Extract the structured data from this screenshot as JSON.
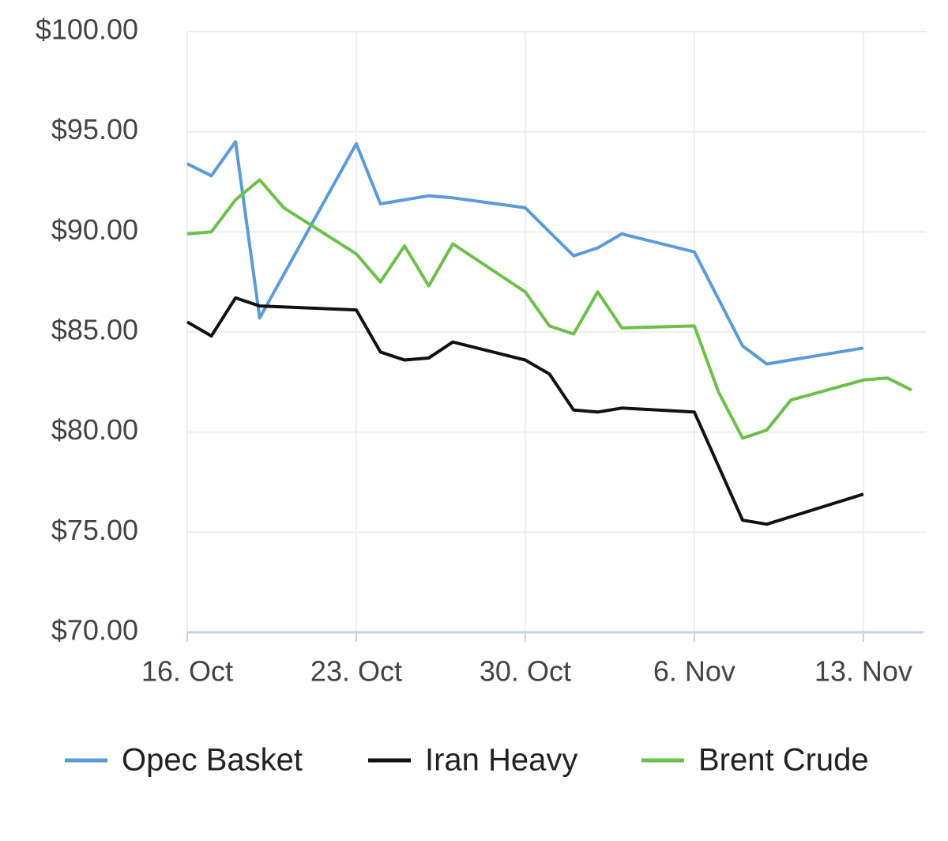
{
  "chart_data": {
    "type": "line",
    "xlim": [
      "16. Oct",
      "15. Nov"
    ],
    "xticks": [
      "16. Oct",
      "23. Oct",
      "30. Oct",
      "6. Nov",
      "13. Nov"
    ],
    "ylim": [
      70,
      100
    ],
    "yticks": [
      {
        "value": 70,
        "label": "$70.00"
      },
      {
        "value": 75,
        "label": "$75.00"
      },
      {
        "value": 80,
        "label": "$80.00"
      },
      {
        "value": 85,
        "label": "$85.00"
      },
      {
        "value": 90,
        "label": "$90.00"
      },
      {
        "value": 95,
        "label": "$95.00"
      },
      {
        "value": 100,
        "label": "$100.00"
      }
    ],
    "grid": true,
    "legend": "bottom",
    "series": [
      {
        "name": "Opec Basket",
        "color": "#5b9bd8",
        "x": [
          "16. Oct",
          "17. Oct",
          "18. Oct",
          "19. Oct",
          "23. Oct",
          "24. Oct",
          "26. Oct",
          "27. Oct",
          "30. Oct",
          "1. Nov",
          "2. Nov",
          "3. Nov",
          "6. Nov",
          "8. Nov",
          "9. Nov",
          "13. Nov"
        ],
        "values": [
          93.4,
          92.8,
          94.5,
          85.7,
          94.4,
          91.4,
          91.8,
          91.7,
          91.2,
          88.8,
          89.2,
          89.9,
          89.0,
          84.3,
          83.4,
          84.2
        ]
      },
      {
        "name": "Iran Heavy",
        "color": "#111111",
        "x": [
          "16. Oct",
          "17. Oct",
          "18. Oct",
          "19. Oct",
          "23. Oct",
          "24. Oct",
          "25. Oct",
          "26. Oct",
          "27. Oct",
          "30. Oct",
          "31. Oct",
          "1. Nov",
          "2. Nov",
          "3. Nov",
          "6. Nov",
          "7. Nov",
          "8. Nov",
          "9. Nov",
          "13. Nov"
        ],
        "values": [
          85.5,
          84.8,
          86.7,
          86.3,
          86.1,
          84.0,
          83.6,
          83.7,
          84.5,
          83.6,
          82.9,
          81.1,
          81.0,
          81.2,
          81.0,
          78.3,
          75.6,
          75.4,
          76.9
        ]
      },
      {
        "name": "Brent Crude",
        "color": "#6cc04a",
        "x": [
          "16. Oct",
          "17. Oct",
          "18. Oct",
          "19. Oct",
          "20. Oct",
          "23. Oct",
          "24. Oct",
          "25. Oct",
          "26. Oct",
          "27. Oct",
          "30. Oct",
          "31. Oct",
          "1. Nov",
          "2. Nov",
          "3. Nov",
          "6. Nov",
          "7. Nov",
          "8. Nov",
          "9. Nov",
          "10. Nov",
          "13. Nov",
          "14. Nov",
          "15. Nov"
        ],
        "values": [
          89.9,
          90.0,
          91.6,
          92.6,
          91.2,
          88.9,
          87.5,
          89.3,
          87.3,
          89.4,
          87.0,
          85.3,
          84.9,
          87.0,
          85.2,
          85.3,
          82.0,
          79.7,
          80.1,
          81.6,
          82.6,
          82.7,
          82.1
        ]
      }
    ]
  }
}
